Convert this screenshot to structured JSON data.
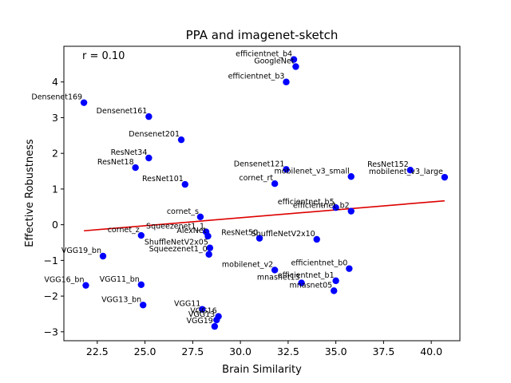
{
  "chart_data": {
    "type": "scatter",
    "title": "PPA and imagenet-sketch",
    "xlabel": "Brain Similarity",
    "ylabel": "Effective Robustness",
    "annotation": "r = 0.10",
    "xlim": [
      20.75,
      41.5
    ],
    "ylim": [
      -3.25,
      5.0
    ],
    "xticks": [
      "22.5",
      "25.0",
      "27.5",
      "30.0",
      "32.5",
      "35.0",
      "37.5",
      "40.0"
    ],
    "yticks": [
      "−3",
      "−2",
      "−1",
      "0",
      "1",
      "2",
      "3",
      "4"
    ],
    "point_color": "#0000ff",
    "line_color": "#dd0000",
    "trend_line": {
      "x": [
        21.8,
        40.7
      ],
      "y": [
        -0.17,
        0.67
      ]
    },
    "points": [
      {
        "label": "efficientnet_b4",
        "x": 32.8,
        "y": 4.63
      },
      {
        "label": "GoogleNet",
        "x": 32.9,
        "y": 4.43
      },
      {
        "label": "efficientnet_b3",
        "x": 32.4,
        "y": 4.0
      },
      {
        "label": "Densenet169",
        "x": 21.8,
        "y": 3.42
      },
      {
        "label": "Densenet161",
        "x": 25.2,
        "y": 3.03
      },
      {
        "label": "Densenet201",
        "x": 26.9,
        "y": 2.38
      },
      {
        "label": "ResNet34",
        "x": 25.2,
        "y": 1.87
      },
      {
        "label": "ResNet18",
        "x": 24.5,
        "y": 1.6
      },
      {
        "label": "ResNet101",
        "x": 27.1,
        "y": 1.13
      },
      {
        "label": "Densenet121",
        "x": 32.4,
        "y": 1.55
      },
      {
        "label": "cornet_rt",
        "x": 31.8,
        "y": 1.15
      },
      {
        "label": "mobilenet_v3_small",
        "x": 35.8,
        "y": 1.35
      },
      {
        "label": "ResNet152",
        "x": 38.9,
        "y": 1.53
      },
      {
        "label": "mobilenet_v3_large",
        "x": 40.7,
        "y": 1.33
      },
      {
        "label": "efficientnet_b5",
        "x": 35.0,
        "y": 0.48
      },
      {
        "label": "efficientnet_b2",
        "x": 35.8,
        "y": 0.38
      },
      {
        "label": "cornet_s",
        "x": 27.9,
        "y": 0.22
      },
      {
        "label": "cornet_z",
        "x": 24.8,
        "y": -0.3
      },
      {
        "label": "Squeezenet1_1",
        "x": 28.2,
        "y": -0.2
      },
      {
        "label": "AlexNet",
        "x": 28.3,
        "y": -0.32
      },
      {
        "label": "ResNet50",
        "x": 31.0,
        "y": -0.38
      },
      {
        "label": "ShuffleNetV2x10",
        "x": 34.0,
        "y": -0.41
      },
      {
        "label": "ShuffleNetV2x05",
        "x": 28.4,
        "y": -0.65
      },
      {
        "label": "Squeezenet1_0",
        "x": 28.35,
        "y": -0.83
      },
      {
        "label": "VGG19_bn",
        "x": 22.8,
        "y": -0.88
      },
      {
        "label": "mobilenet_v2",
        "x": 31.8,
        "y": -1.27
      },
      {
        "label": "efficientnet_b0",
        "x": 35.7,
        "y": -1.23
      },
      {
        "label": "efficientnet_b1",
        "x": 35.0,
        "y": -1.57
      },
      {
        "label": "mnasnet13",
        "x": 33.2,
        "y": -1.63
      },
      {
        "label": "mnasnet05",
        "x": 34.9,
        "y": -1.85
      },
      {
        "label": "VGG16_bn",
        "x": 21.9,
        "y": -1.7
      },
      {
        "label": "VGG11_bn",
        "x": 24.8,
        "y": -1.68
      },
      {
        "label": "VGG13_bn",
        "x": 24.9,
        "y": -2.25
      },
      {
        "label": "VGG11",
        "x": 28.0,
        "y": -2.37
      },
      {
        "label": "VGG16",
        "x": 28.85,
        "y": -2.57
      },
      {
        "label": "VGG13",
        "x": 28.75,
        "y": -2.67
      },
      {
        "label": "VGG19",
        "x": 28.65,
        "y": -2.85
      }
    ]
  }
}
